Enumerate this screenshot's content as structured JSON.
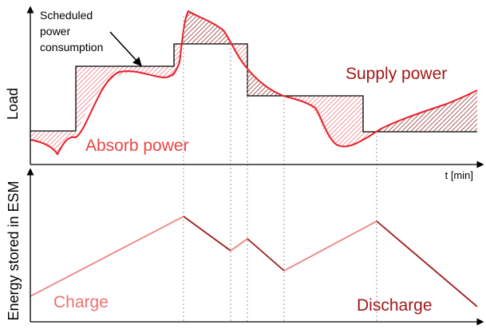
{
  "colors": {
    "axis": "#000000",
    "schedule": "#000000",
    "load_curve": "#e8202a",
    "absorb_hatch": "#e8505a",
    "supply_hatch": "#8b1a1a",
    "charge": "#f08080",
    "discharge": "#a01818",
    "guide": "#999999",
    "absorb_text": "#ee4444",
    "supply_text": "#a01818",
    "charge_text": "#f07070",
    "discharge_text": "#a01818"
  },
  "top_panel": {
    "ylabel": "Load",
    "xlabel": "t [min]",
    "annotation": [
      "Scheduled",
      "power",
      "consumption"
    ],
    "absorb_label": "Absorb power",
    "supply_label": "Supply power"
  },
  "bottom_panel": {
    "ylabel": "Energy stored in ESM",
    "charge_label": "Charge",
    "discharge_label": "Discharge"
  }
}
